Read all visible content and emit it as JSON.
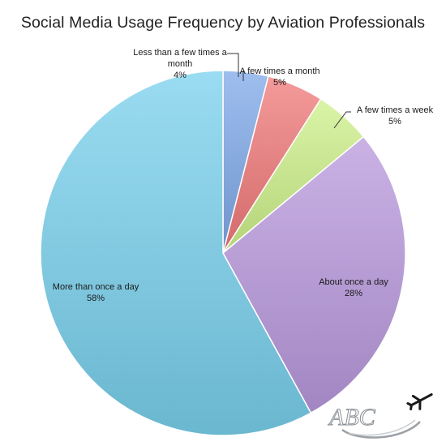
{
  "chart_data": {
    "type": "pie",
    "title": "Social Media Usage Frequency by Aviation Professionals",
    "start_angle_deg": 0,
    "direction": "clockwise",
    "slices": [
      {
        "label_lines": [
          "Less than a few times a",
          "month"
        ],
        "value_text": "4%",
        "value": 4,
        "color": "#7ea8e8"
      },
      {
        "label_lines": [
          "A few times a month"
        ],
        "value_text": "5%",
        "value": 5,
        "color": "#f07878"
      },
      {
        "label_lines": [
          "A few times a week"
        ],
        "value_text": "5%",
        "value": 5,
        "color": "#cdf08a"
      },
      {
        "label_lines": [
          "About once a day"
        ],
        "value_text": "28%",
        "value": 28,
        "color": "#b898dc"
      },
      {
        "label_lines": [
          "More than once a day"
        ],
        "value_text": "58%",
        "value": 58,
        "color": "#78d0ec"
      }
    ]
  },
  "logo": {
    "text": "ABC",
    "icon": "airplane-icon"
  }
}
